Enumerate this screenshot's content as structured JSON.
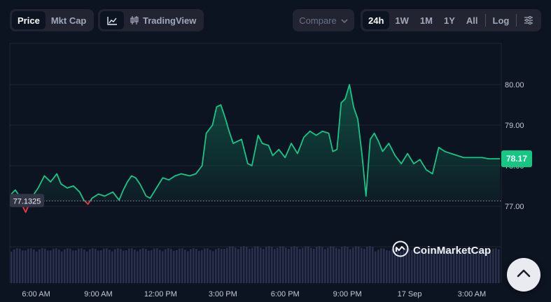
{
  "toolbar": {
    "view_modes": [
      {
        "label": "Price",
        "active": true
      },
      {
        "label": "Mkt Cap",
        "active": false
      }
    ],
    "chart_styles": {
      "line_icon": "line-chart-icon",
      "tradingview_icon": "candlestick-icon",
      "tradingview_label": "TradingView"
    },
    "compare_label": "Compare",
    "ranges": [
      {
        "label": "24h",
        "active": true
      },
      {
        "label": "1W",
        "active": false
      },
      {
        "label": "1M",
        "active": false
      },
      {
        "label": "1Y",
        "active": false
      },
      {
        "label": "All",
        "active": false
      }
    ],
    "log_label": "Log",
    "settings_icon": "sliders-icon"
  },
  "watermark": {
    "text": "CoinMarketCap",
    "icon": "coinmarketcap-logo-icon"
  },
  "scroll_top_icon": "chevron-up-icon",
  "colors": {
    "background": "#0d1421",
    "up": "#16c784",
    "down": "#ea3943",
    "grid": "#222531",
    "volume": "#2d3454"
  },
  "chart_data": {
    "type": "line",
    "x_ticks": [
      "6:00 AM",
      "9:00 AM",
      "12:00 PM",
      "3:00 PM",
      "6:00 PM",
      "9:00 PM",
      "17 Sep",
      "3:00 AM"
    ],
    "y_ticks": [
      77.0,
      78.0,
      79.0,
      80.0
    ],
    "y_tick_labels": [
      "77.00",
      "78.00",
      "79.00",
      "80.00"
    ],
    "ylim": [
      76.0,
      80.9
    ],
    "xlim": [
      4.8,
      28.35
    ],
    "reference_price": 77.1325,
    "reference_label": "77.1325",
    "current_price": 78.17,
    "current_label": "78.17",
    "grid": true,
    "volume_bars": true,
    "x_hours": [
      4.8,
      5.0,
      5.2,
      5.3,
      5.5,
      5.7,
      5.9,
      6.1,
      6.4,
      6.7,
      7.0,
      7.2,
      7.5,
      7.8,
      8.1,
      8.3,
      8.5,
      8.7,
      9.0,
      9.3,
      9.7,
      10.0,
      10.2,
      10.4,
      10.6,
      10.8,
      11.0,
      11.3,
      11.5,
      11.8,
      12.1,
      12.4,
      12.7,
      13.0,
      13.4,
      13.7,
      14.0,
      14.2,
      14.5,
      14.7,
      14.9,
      15.1,
      15.3,
      15.5,
      15.7,
      15.9,
      16.2,
      16.4,
      16.7,
      16.9,
      17.2,
      17.4,
      17.7,
      18.0,
      18.3,
      18.6,
      18.9,
      19.2,
      19.5,
      19.8,
      20.1,
      20.3,
      20.5,
      20.7,
      20.9,
      21.1,
      21.3,
      21.5,
      21.7,
      21.9,
      22.1,
      22.3,
      22.5,
      22.7,
      23.0,
      23.3,
      23.6,
      23.9,
      24.2,
      24.5,
      24.8,
      25.1,
      25.4,
      25.7,
      26.0,
      26.3,
      26.6,
      26.9,
      27.2,
      27.5,
      27.8,
      28.1,
      28.35
    ],
    "prices": [
      77.3,
      77.4,
      77.25,
      77.05,
      76.85,
      77.1,
      77.3,
      77.45,
      77.75,
      77.6,
      77.8,
      77.55,
      77.45,
      77.5,
      77.35,
      77.15,
      77.05,
      77.2,
      77.3,
      77.25,
      77.35,
      77.15,
      77.4,
      77.6,
      77.75,
      77.7,
      77.55,
      77.25,
      77.2,
      77.45,
      77.7,
      77.65,
      77.75,
      77.8,
      77.75,
      77.8,
      78.0,
      78.8,
      79.0,
      79.45,
      79.5,
      79.2,
      78.85,
      78.55,
      78.6,
      78.65,
      78.05,
      78.0,
      78.75,
      78.55,
      78.5,
      78.25,
      78.4,
      78.2,
      78.55,
      78.3,
      78.7,
      78.85,
      78.75,
      78.85,
      78.8,
      78.35,
      78.4,
      79.55,
      79.65,
      80.0,
      79.45,
      79.15,
      78.3,
      77.25,
      78.65,
      78.8,
      78.6,
      78.35,
      78.55,
      78.25,
      78.05,
      78.3,
      78.05,
      78.15,
      77.9,
      77.8,
      78.45,
      78.35,
      78.3,
      78.25,
      78.2,
      78.2,
      78.2,
      78.2,
      78.17,
      78.17,
      78.17
    ]
  }
}
